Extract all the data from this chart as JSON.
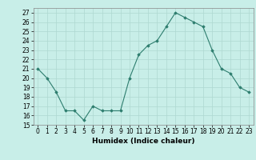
{
  "x": [
    0,
    1,
    2,
    3,
    4,
    5,
    6,
    7,
    8,
    9,
    10,
    11,
    12,
    13,
    14,
    15,
    16,
    17,
    18,
    19,
    20,
    21,
    22,
    23
  ],
  "y": [
    21,
    20,
    18.5,
    16.5,
    16.5,
    15.5,
    17,
    16.5,
    16.5,
    16.5,
    20,
    22.5,
    23.5,
    24,
    25.5,
    27,
    26.5,
    26,
    25.5,
    23,
    21,
    20.5,
    19,
    18.5
  ],
  "line_color": "#2d7d6e",
  "marker": "D",
  "marker_size": 1.8,
  "bg_color": "#c8eee8",
  "grid_color": "#aed8d0",
  "xlabel": "Humidex (Indice chaleur)",
  "xlim": [
    -0.5,
    23.5
  ],
  "ylim": [
    15,
    27.5
  ],
  "yticks": [
    15,
    16,
    17,
    18,
    19,
    20,
    21,
    22,
    23,
    24,
    25,
    26,
    27
  ],
  "xticks": [
    0,
    1,
    2,
    3,
    4,
    5,
    6,
    7,
    8,
    9,
    10,
    11,
    12,
    13,
    14,
    15,
    16,
    17,
    18,
    19,
    20,
    21,
    22,
    23
  ],
  "label_fontsize": 6.5,
  "tick_fontsize": 5.5
}
